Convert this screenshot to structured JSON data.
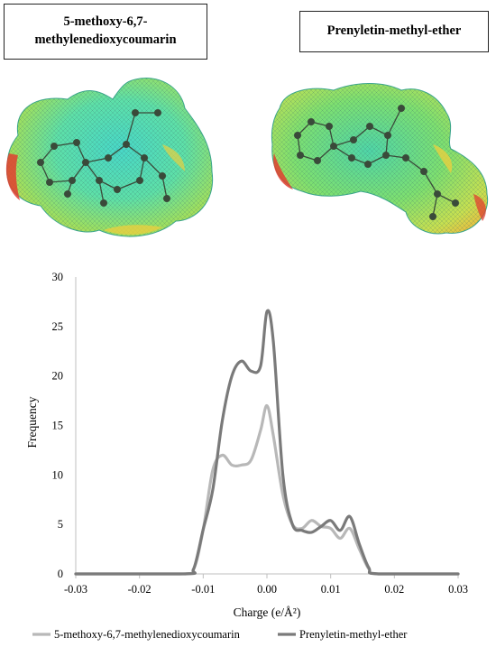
{
  "molecules": {
    "left_name": "5-methoxy-6,7-methylenedioxycoumarin",
    "left_name_line1": "5-methoxy-6,7-",
    "left_name_line2": "methylenedioxycoumarin",
    "right_name": "Prenyletin-methyl-ether",
    "left_surface_icon": "electrostatic-surface-mesh",
    "right_surface_icon": "electrostatic-surface-mesh"
  },
  "chart_data": {
    "type": "line",
    "xlabel": "Charge (e/Å²)",
    "ylabel": "Frequency",
    "xlim": [
      -0.03,
      0.03
    ],
    "ylim": [
      0,
      30
    ],
    "xticks": [
      "-0.03",
      "-0.02",
      "-0.01",
      "0.00",
      "0.01",
      "0.02",
      "0.03"
    ],
    "xtick_values": [
      -0.03,
      -0.02,
      -0.01,
      0.0,
      0.01,
      0.02,
      0.03
    ],
    "yticks": [
      "0",
      "5",
      "10",
      "15",
      "20",
      "25",
      "30"
    ],
    "ytick_values": [
      0,
      5,
      10,
      15,
      20,
      25,
      30
    ],
    "grid": false,
    "legend_position": "bottom",
    "series": [
      {
        "name": "5-methoxy-6,7-methylenedioxycoumarin",
        "color": "#b8b8b8",
        "x": [
          -0.0135,
          -0.0115,
          -0.01,
          -0.0085,
          -0.007,
          -0.0055,
          -0.004,
          -0.0025,
          -0.001,
          0.0,
          0.001,
          0.0025,
          0.004,
          0.0055,
          0.007,
          0.0085,
          0.01,
          0.0115,
          0.013,
          0.0145,
          0.016,
          0.0175
        ],
        "y": [
          0,
          0.5,
          4.5,
          10.5,
          12.0,
          11.0,
          11.0,
          11.5,
          14.5,
          17.0,
          14.0,
          8.0,
          5.0,
          4.6,
          5.4,
          4.8,
          4.6,
          3.6,
          4.6,
          2.5,
          0.5,
          0
        ]
      },
      {
        "name": "Prenyletin-methyl-ether",
        "color": "#7a7a7a",
        "x": [
          -0.013,
          -0.0115,
          -0.01,
          -0.0085,
          -0.007,
          -0.0055,
          -0.004,
          -0.0025,
          -0.001,
          0.0,
          0.001,
          0.0025,
          0.004,
          0.0055,
          0.007,
          0.0085,
          0.01,
          0.0115,
          0.013,
          0.0145,
          0.016,
          0.0175
        ],
        "y": [
          0,
          0.5,
          4.5,
          8.5,
          15.5,
          20.0,
          21.5,
          20.5,
          21.0,
          26.5,
          23.5,
          10.0,
          5.0,
          4.4,
          4.2,
          4.8,
          5.4,
          4.4,
          5.8,
          3.0,
          0.6,
          0
        ]
      }
    ]
  }
}
